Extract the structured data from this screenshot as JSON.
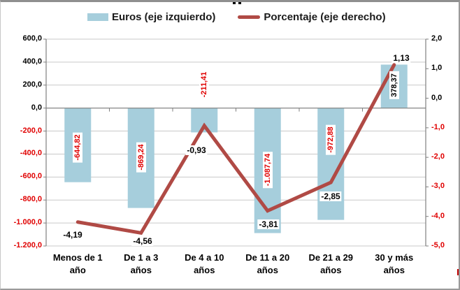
{
  "legend": [
    {
      "label": "Euros (eje izquierdo)",
      "type": "bar"
    },
    {
      "label": "Porcentaje (eje derecho)",
      "type": "line"
    }
  ],
  "colors": {
    "bar": "#A6CEDC",
    "line": "#B04A45",
    "negative": "#E00000",
    "positive": "#000000",
    "gridline": "#C9C9C9",
    "axis": "#7F7F7F"
  },
  "chart_data": {
    "type": "combo",
    "categories": [
      "Menos de 1\naño",
      "De 1 a 3\naños",
      "De 4 a 10\naños",
      "De 11 a 20\naños",
      "De 21 a 29\naños",
      "30 y más\naños"
    ],
    "series": [
      {
        "name": "Euros (eje izquierdo)",
        "type": "bar",
        "axis": "left",
        "values": [
          -644.82,
          -869.24,
          -211.41,
          -1087.74,
          -972.88,
          378.37
        ],
        "labels": [
          "-644,82",
          "-869,24",
          "-211,41",
          "-1.087,74",
          "-972,88",
          "378,37"
        ]
      },
      {
        "name": "Porcentaje (eje derecho)",
        "type": "line",
        "axis": "right",
        "values": [
          -4.19,
          -4.56,
          -0.93,
          -3.81,
          -2.85,
          1.13
        ],
        "labels": [
          "-4,19",
          "-4,56",
          "-0,93",
          "-3,81",
          "-2,85",
          "1,13"
        ]
      }
    ],
    "left_axis": {
      "min": -1200,
      "max": 600,
      "values": [
        600,
        400,
        200,
        0,
        -200,
        -400,
        -600,
        -800,
        -1000,
        -1200
      ],
      "ticks": [
        "600,0",
        "400,0",
        "200,0",
        "0,0",
        "-200,0",
        "-400,0",
        "-600,0",
        "-800,0",
        "-1.000,0",
        "-1.200,0"
      ]
    },
    "right_axis": {
      "min": -5,
      "max": 2,
      "values": [
        2,
        1,
        0,
        -1,
        -2,
        -3,
        -4,
        -5
      ],
      "ticks": [
        "2,0",
        "1,0",
        "0,0",
        "-1,0",
        "-2,0",
        "-3,0",
        "-4,0",
        "-5,0"
      ]
    },
    "grid": true,
    "legend_position": "top"
  }
}
